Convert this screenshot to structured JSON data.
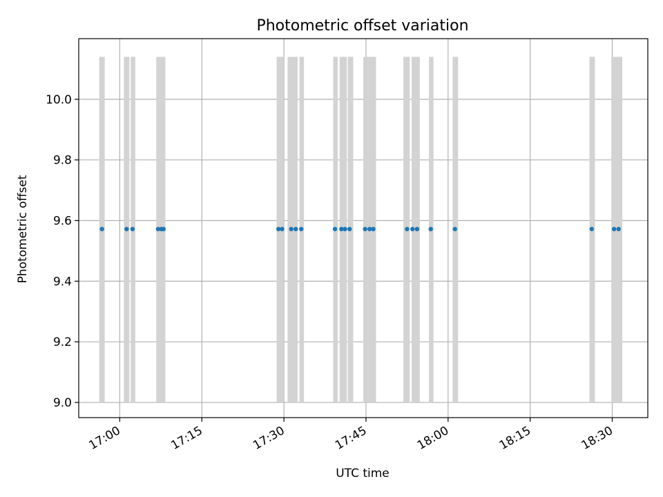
{
  "chart_data": {
    "type": "scatter",
    "title": "Photometric offset variation",
    "xlabel": "UTC time",
    "ylabel": "Photometric offset",
    "x_type": "time",
    "x_ticks": [
      "17:00",
      "17:15",
      "17:30",
      "17:45",
      "18:00",
      "18:15",
      "18:30"
    ],
    "y_ticks": [
      "9.0",
      "9.2",
      "9.4",
      "9.6",
      "9.8",
      "10.0"
    ],
    "xlim": [
      "16:52:30",
      "18:36:30"
    ],
    "ylim": [
      8.95,
      10.2
    ],
    "grid": true,
    "band_color": "#d3d3d3",
    "band_range": [
      9.0,
      10.14
    ],
    "point_color": "#1f77b4",
    "points": [
      {
        "x": "16:56:45",
        "y": 9.572
      },
      {
        "x": "17:01:15",
        "y": 9.572
      },
      {
        "x": "17:02:20",
        "y": 9.572
      },
      {
        "x": "17:07:00",
        "y": 9.572
      },
      {
        "x": "17:07:35",
        "y": 9.572
      },
      {
        "x": "17:08:00",
        "y": 9.572
      },
      {
        "x": "17:29:00",
        "y": 9.572
      },
      {
        "x": "17:29:40",
        "y": 9.572
      },
      {
        "x": "17:31:20",
        "y": 9.572
      },
      {
        "x": "17:32:10",
        "y": 9.572
      },
      {
        "x": "17:33:10",
        "y": 9.572
      },
      {
        "x": "17:39:20",
        "y": 9.572
      },
      {
        "x": "17:40:30",
        "y": 9.572
      },
      {
        "x": "17:41:10",
        "y": 9.572
      },
      {
        "x": "17:42:00",
        "y": 9.572
      },
      {
        "x": "17:44:50",
        "y": 9.572
      },
      {
        "x": "17:45:40",
        "y": 9.572
      },
      {
        "x": "17:46:20",
        "y": 9.572
      },
      {
        "x": "17:52:30",
        "y": 9.572
      },
      {
        "x": "17:53:30",
        "y": 9.572
      },
      {
        "x": "17:54:20",
        "y": 9.572
      },
      {
        "x": "17:56:50",
        "y": 9.572
      },
      {
        "x": "18:01:15",
        "y": 9.572
      },
      {
        "x": "18:26:15",
        "y": 9.572
      },
      {
        "x": "18:30:20",
        "y": 9.572
      },
      {
        "x": "18:31:10",
        "y": 9.572
      }
    ],
    "bands": [
      [
        "16:56:15",
        "16:57:15"
      ],
      [
        "17:00:45",
        "17:01:45"
      ],
      [
        "17:02:00",
        "17:02:50"
      ],
      [
        "17:06:40",
        "17:08:20"
      ],
      [
        "17:28:40",
        "17:30:00"
      ],
      [
        "17:30:40",
        "17:32:30"
      ],
      [
        "17:32:50",
        "17:33:40"
      ],
      [
        "17:39:00",
        "17:39:50"
      ],
      [
        "17:40:10",
        "17:41:30"
      ],
      [
        "17:41:40",
        "17:42:40"
      ],
      [
        "17:44:30",
        "17:46:50"
      ],
      [
        "17:51:50",
        "17:53:00"
      ],
      [
        "17:53:20",
        "17:54:50"
      ],
      [
        "17:56:30",
        "17:57:20"
      ],
      [
        "18:00:50",
        "18:01:50"
      ],
      [
        "18:25:50",
        "18:26:50"
      ],
      [
        "18:29:50",
        "18:31:50"
      ]
    ]
  }
}
